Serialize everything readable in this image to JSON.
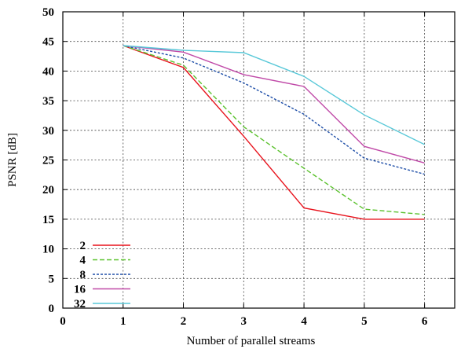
{
  "chart_data": {
    "type": "line",
    "xlabel": "Number of parallel streams",
    "ylabel": "PSNR [dB]",
    "xlim": [
      0,
      6.5
    ],
    "ylim": [
      0,
      50
    ],
    "xticks": [
      0,
      1,
      2,
      3,
      4,
      5,
      6
    ],
    "yticks": [
      0,
      5,
      10,
      15,
      20,
      25,
      30,
      35,
      40,
      45,
      50
    ],
    "grid": true,
    "legend_position": "bottom-left",
    "x": [
      1,
      2,
      3,
      4,
      5,
      6
    ],
    "series": [
      {
        "name": "2",
        "color": "#e8121c",
        "dash": "solid",
        "values": [
          44.3,
          40.6,
          29.0,
          16.9,
          15.0,
          15.0
        ]
      },
      {
        "name": "4",
        "color": "#5cc22f",
        "dash": "dashed",
        "values": [
          44.3,
          41.0,
          30.6,
          23.6,
          16.7,
          15.8
        ]
      },
      {
        "name": "8",
        "color": "#1f4fa8",
        "dash": "dotted",
        "values": [
          44.3,
          42.2,
          38.0,
          32.7,
          25.3,
          22.6
        ]
      },
      {
        "name": "16",
        "color": "#c04aa8",
        "dash": "solid",
        "values": [
          44.3,
          43.2,
          39.4,
          37.4,
          27.3,
          24.5
        ]
      },
      {
        "name": "32",
        "color": "#58c8d8",
        "dash": "solid",
        "values": [
          44.3,
          43.5,
          43.1,
          39.1,
          32.6,
          27.6
        ]
      }
    ]
  }
}
